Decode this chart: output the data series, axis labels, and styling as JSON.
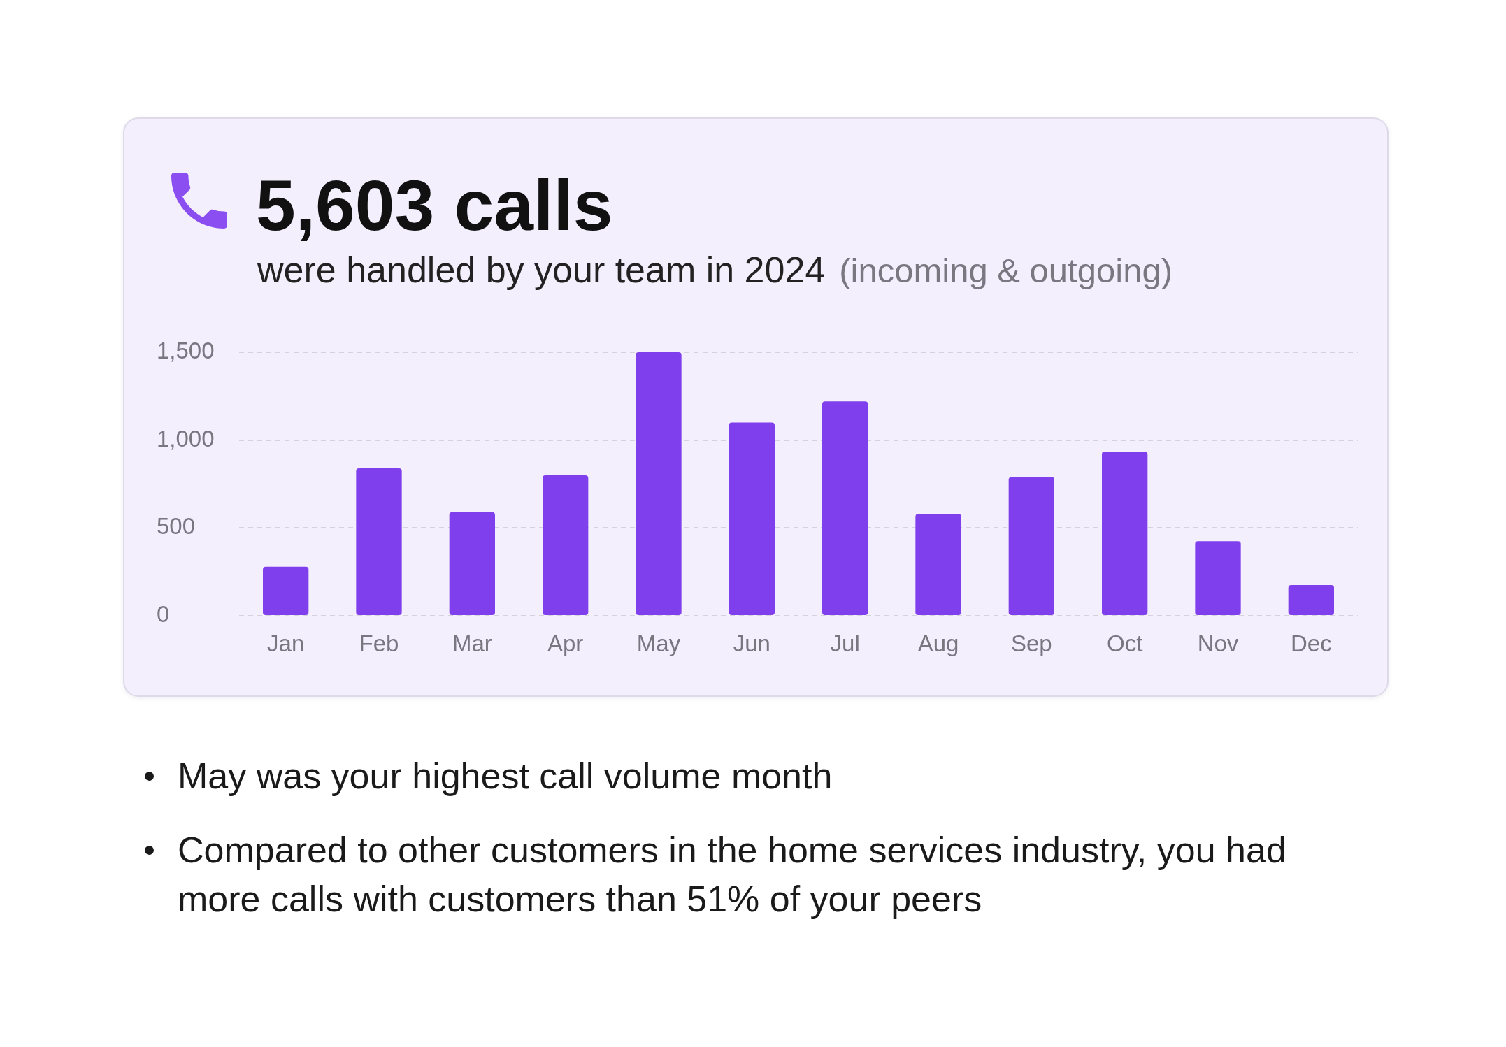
{
  "chart_data": {
    "type": "bar",
    "title": "5,603 calls",
    "subtitle": "were handled by your team in 2024",
    "categories": [
      "Jan",
      "Feb",
      "Mar",
      "Apr",
      "May",
      "Jun",
      "Jul",
      "Aug",
      "Sep",
      "Oct",
      "Nov",
      "Dec"
    ],
    "values": [
      280,
      840,
      590,
      800,
      1500,
      1100,
      1220,
      580,
      790,
      935,
      425,
      175
    ],
    "color": "#7f3fec",
    "ylim": [
      0,
      1500
    ],
    "yticks": [
      0,
      500,
      {
        "value": 1000,
        "label": "1,000"
      },
      {
        "value": 1500,
        "label": "1,500"
      }
    ],
    "grid": "y",
    "annotations": [
      "(incoming & outgoing)",
      "May was your highest call volume month",
      "Compared to other customers in the home services industry, you had more calls with customers than 51% of your peers"
    ]
  }
}
